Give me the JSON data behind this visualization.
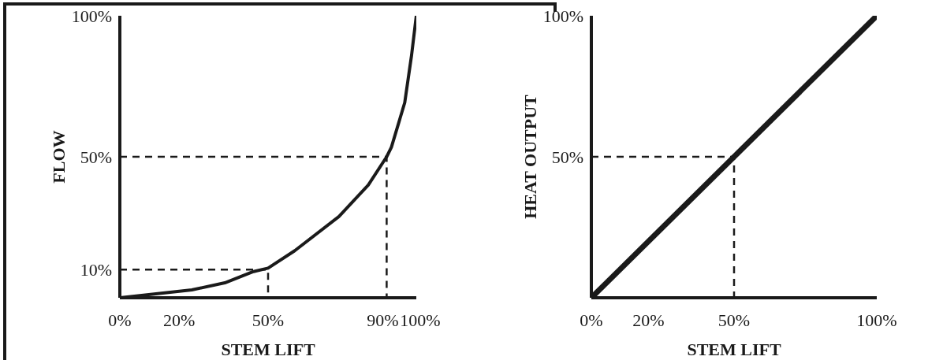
{
  "chart_data": [
    {
      "type": "line",
      "xlabel": "STEM LIFT",
      "ylabel": "FLOW",
      "xlim": [
        0,
        100
      ],
      "ylim": [
        0,
        100
      ],
      "xticks": [
        {
          "value": 0,
          "label": "0%"
        },
        {
          "value": 20,
          "label": "20%"
        },
        {
          "value": 50,
          "label": "50%"
        },
        {
          "value": 90,
          "label": "90%"
        },
        {
          "value": 100,
          "label": "100%"
        }
      ],
      "yticks": [
        {
          "value": 10,
          "label": "10%"
        },
        {
          "value": 50,
          "label": "50%"
        },
        {
          "value": 100,
          "label": "100%"
        }
      ],
      "grid": false,
      "legend": false,
      "marker": "none",
      "line_style": "solid",
      "series": [
        {
          "color": "#1a1a1a",
          "x": [
            0,
            24.3,
            35.4,
            45.1,
            50,
            59,
            73.9,
            83.8,
            90,
            91.6,
            96.1,
            98.4,
            100
          ],
          "values": [
            0,
            2.8,
            5.3,
            9.3,
            10.5,
            16.7,
            28.8,
            40,
            50,
            53.4,
            69.2,
            86,
            100
          ]
        },
        {
          "color": "#1a1a1a",
          "line_style": "dashed",
          "x": [
            0,
            90,
            90
          ],
          "values": [
            50,
            50,
            0
          ]
        },
        {
          "color": "#1a1a1a",
          "line_style": "dashed",
          "x": [
            0,
            50,
            50
          ],
          "values": [
            10,
            10,
            0
          ]
        }
      ]
    },
    {
      "type": "line",
      "xlabel": "STEM LIFT",
      "ylabel": "HEAT OUTPUT",
      "xlim": [
        0,
        100
      ],
      "ylim": [
        0,
        100
      ],
      "xticks": [
        {
          "value": 0,
          "label": "0%"
        },
        {
          "value": 20,
          "label": "20%"
        },
        {
          "value": 50,
          "label": "50%"
        },
        {
          "value": 100,
          "label": "100%"
        }
      ],
      "yticks": [
        {
          "value": 50,
          "label": "50%"
        },
        {
          "value": 100,
          "label": "100%"
        }
      ],
      "grid": false,
      "legend": false,
      "marker": "none",
      "line_style": "solid",
      "series": [
        {
          "color": "#1a1a1a",
          "x": [
            0,
            100
          ],
          "values": [
            0,
            100
          ]
        },
        {
          "color": "#1a1a1a",
          "line_style": "dashed",
          "x": [
            0,
            50,
            50
          ],
          "values": [
            50,
            50,
            0
          ]
        }
      ]
    }
  ]
}
